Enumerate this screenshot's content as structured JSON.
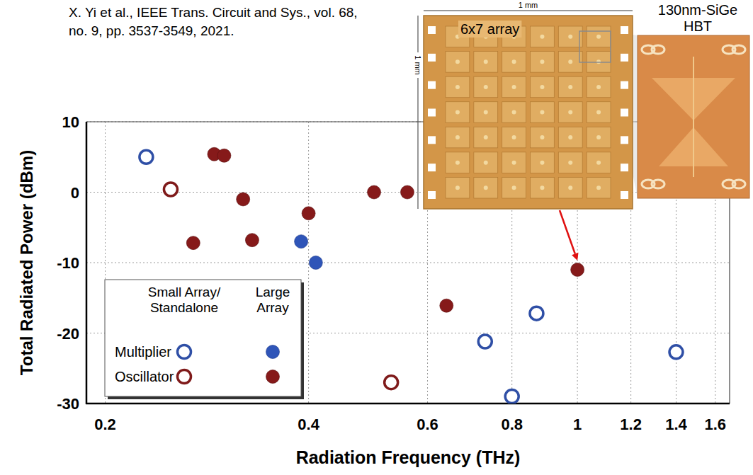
{
  "chart_data": {
    "type": "scatter",
    "log": "x",
    "grid": true,
    "legend": "lower left",
    "xlabel": "Radiation Frequency (THz)",
    "ylabel": "Total Radiated Power (dBm)",
    "xlim": [
      0.1876,
      1.68
    ],
    "ylim": [
      -30,
      10
    ],
    "xticks": [
      0.2,
      0.4,
      0.6,
      0.8,
      1,
      1.2,
      1.4,
      1.6
    ],
    "yticks": [
      -30,
      -20,
      -10,
      0,
      10
    ],
    "legend_columns": [
      "Small Array/ Standalone",
      "Large Array"
    ],
    "series": [
      {
        "name": "Multiplier",
        "color": "#2f4fa6",
        "marker": "open",
        "x": [
          0.23,
          0.73,
          0.8,
          0.87,
          1.4
        ],
        "values": [
          5,
          -21.2,
          -29,
          -17.2,
          -22.7
        ]
      },
      {
        "name": "Multiplier",
        "color": "#2f55b8",
        "marker": "filled",
        "x": [
          0.39,
          0.41
        ],
        "values": [
          -7,
          -10
        ]
      },
      {
        "name": "Oscillator",
        "color": "#7f1a1a",
        "marker": "open",
        "x": [
          0.25,
          0.53
        ],
        "values": [
          0.4,
          -27
        ]
      },
      {
        "name": "Oscillator",
        "color": "#861a1a",
        "marker": "filled",
        "x": [
          0.27,
          0.29,
          0.3,
          0.32,
          0.33,
          0.4,
          0.5,
          0.56,
          0.64,
          1.0
        ],
        "values": [
          -7.2,
          5.4,
          5.2,
          -1,
          -6.8,
          -3,
          0,
          0,
          -16.1,
          -11
        ]
      }
    ],
    "annotations": [
      "X. Yi et al., IEEE Trans. Circuit and Sys., vol. 68,",
      "no. 9, pp. 3537-3549, 2021.",
      "1 mm",
      "1 mm",
      "6x7 array",
      "130nm-SiGe HBT"
    ]
  }
}
